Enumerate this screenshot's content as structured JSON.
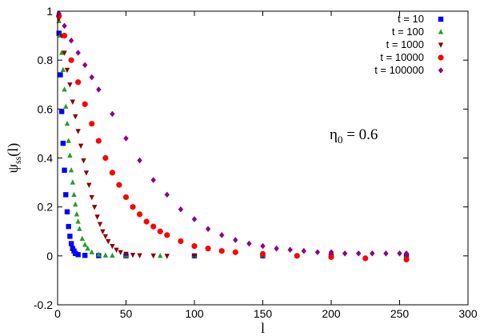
{
  "chart_data": {
    "type": "scatter",
    "xlabel": "l",
    "ylabel_main": "ψ",
    "ylabel_sub": "ss",
    "ylabel_arg": "(l)",
    "xlim": [
      0,
      300
    ],
    "ylim": [
      -0.2,
      1
    ],
    "xticks": [
      "0",
      "50",
      "100",
      "150",
      "200",
      "250",
      "300"
    ],
    "xtick_values": [
      0,
      50,
      100,
      150,
      200,
      250,
      300
    ],
    "yticks": [
      "-0.2",
      "0",
      "0.2",
      "0.4",
      "0.6",
      "0.8",
      "1"
    ],
    "ytick_values": [
      -0.2,
      0,
      0.2,
      0.4,
      0.6,
      0.8,
      1
    ],
    "grid": false,
    "legend_position": "top-right",
    "annotation": {
      "main": "η",
      "sub": "0",
      "rest": " = 0.6"
    },
    "series": [
      {
        "name": "t = 10",
        "color": "#0000ff",
        "marker": "square",
        "x": [
          1,
          2,
          3,
          4,
          5,
          6,
          7,
          8,
          9,
          10,
          11,
          12,
          13,
          15,
          20,
          30,
          50,
          100,
          150,
          200,
          255
        ],
        "y": [
          0.91,
          0.74,
          0.59,
          0.46,
          0.35,
          0.25,
          0.18,
          0.12,
          0.08,
          0.05,
          0.03,
          0.02,
          0.01,
          0.005,
          0.002,
          0.001,
          0.0,
          0.0,
          0.0,
          0.0,
          0.0
        ]
      },
      {
        "name": "t = 100",
        "color": "#2a9a2a",
        "marker": "triangle-up",
        "x": [
          1,
          2,
          3,
          4,
          5,
          6,
          7,
          8,
          9,
          10,
          11,
          12,
          13,
          14,
          15,
          16,
          18,
          20,
          22,
          25,
          30,
          35,
          40,
          50,
          75,
          100,
          150,
          200,
          255
        ],
        "y": [
          0.96,
          0.9,
          0.83,
          0.76,
          0.68,
          0.61,
          0.54,
          0.47,
          0.41,
          0.35,
          0.3,
          0.25,
          0.21,
          0.17,
          0.14,
          0.11,
          0.07,
          0.045,
          0.03,
          0.015,
          0.005,
          0.002,
          0.001,
          0.0,
          0.0,
          0.0,
          0.0,
          0.0,
          0.0
        ]
      },
      {
        "name": "t = 1000",
        "color": "#8b0000",
        "marker": "triangle-down",
        "x": [
          1,
          3,
          5,
          7,
          9,
          11,
          13,
          15,
          17,
          19,
          21,
          23,
          25,
          27,
          29,
          31,
          33,
          35,
          37,
          40,
          43,
          46,
          50,
          55,
          60,
          70,
          80,
          100,
          150,
          200,
          255
        ],
        "y": [
          0.97,
          0.9,
          0.83,
          0.76,
          0.7,
          0.63,
          0.57,
          0.51,
          0.45,
          0.39,
          0.34,
          0.29,
          0.24,
          0.2,
          0.16,
          0.13,
          0.1,
          0.08,
          0.06,
          0.04,
          0.025,
          0.015,
          0.008,
          0.004,
          0.002,
          0.001,
          0.0,
          0.0,
          0.0,
          0.0,
          0.0
        ]
      },
      {
        "name": "t = 10000",
        "color": "#ff0000",
        "marker": "circle",
        "x": [
          1,
          5,
          10,
          15,
          20,
          25,
          30,
          35,
          40,
          45,
          50,
          55,
          60,
          65,
          70,
          75,
          80,
          90,
          100,
          110,
          120,
          130,
          150,
          175,
          200,
          225,
          255
        ],
        "y": [
          0.98,
          0.9,
          0.8,
          0.71,
          0.62,
          0.54,
          0.47,
          0.4,
          0.34,
          0.29,
          0.24,
          0.2,
          0.17,
          0.14,
          0.12,
          0.1,
          0.085,
          0.06,
          0.04,
          0.03,
          0.02,
          0.015,
          0.008,
          0.0,
          -0.005,
          -0.01,
          -0.015
        ]
      },
      {
        "name": "t = 100000",
        "color": "#8b008b",
        "marker": "diamond",
        "x": [
          1,
          5,
          10,
          15,
          20,
          25,
          30,
          40,
          50,
          60,
          70,
          80,
          90,
          100,
          110,
          120,
          130,
          140,
          150,
          160,
          170,
          180,
          190,
          200,
          210,
          220,
          230,
          240,
          250,
          255
        ],
        "y": [
          0.99,
          0.94,
          0.88,
          0.83,
          0.78,
          0.73,
          0.68,
          0.58,
          0.48,
          0.39,
          0.31,
          0.25,
          0.19,
          0.15,
          0.11,
          0.085,
          0.065,
          0.05,
          0.04,
          0.03,
          0.025,
          0.02,
          0.015,
          0.015,
          0.01,
          0.01,
          0.01,
          0.01,
          0.01,
          0.01
        ]
      }
    ]
  }
}
